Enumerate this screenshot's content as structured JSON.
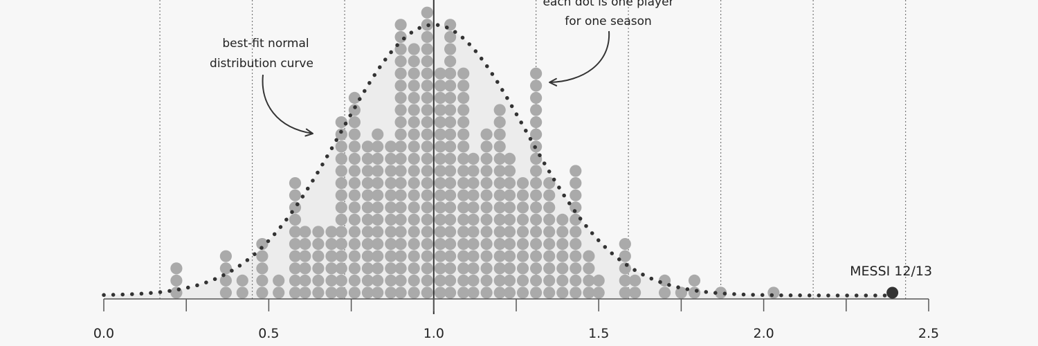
{
  "chart_data": {
    "type": "dotplot",
    "x_axis": {
      "range": [
        0.0,
        2.5
      ],
      "ticks": [
        0.0,
        0.5,
        1.0,
        1.5,
        2.0,
        2.5
      ],
      "tick_labels": [
        "0.0",
        "0.5",
        "1.0",
        "1.5",
        "2.0",
        "2.5"
      ],
      "minor_step": 0.25
    },
    "sd_gridlines": [
      0.17,
      0.45,
      0.73,
      1.31,
      1.59,
      1.87,
      2.15,
      2.43
    ],
    "mean_line": 1.0,
    "normal_curve": {
      "mean": 1.0,
      "sd": 0.28,
      "peak_dot_count": 22
    },
    "columns": [
      {
        "x": 0.22,
        "count": 3
      },
      {
        "x": 0.37,
        "count": 4
      },
      {
        "x": 0.42,
        "count": 2
      },
      {
        "x": 0.48,
        "count": 5
      },
      {
        "x": 0.53,
        "count": 2
      },
      {
        "x": 0.58,
        "count": 10
      },
      {
        "x": 0.61,
        "count": 6
      },
      {
        "x": 0.65,
        "count": 6
      },
      {
        "x": 0.69,
        "count": 6
      },
      {
        "x": 0.72,
        "count": 15
      },
      {
        "x": 0.76,
        "count": 17
      },
      {
        "x": 0.8,
        "count": 13
      },
      {
        "x": 0.83,
        "count": 14
      },
      {
        "x": 0.87,
        "count": 13
      },
      {
        "x": 0.9,
        "count": 23
      },
      {
        "x": 0.94,
        "count": 21
      },
      {
        "x": 0.98,
        "count": 24
      },
      {
        "x": 1.02,
        "count": 19
      },
      {
        "x": 1.05,
        "count": 23
      },
      {
        "x": 1.09,
        "count": 19
      },
      {
        "x": 1.12,
        "count": 12
      },
      {
        "x": 1.16,
        "count": 14
      },
      {
        "x": 1.2,
        "count": 16
      },
      {
        "x": 1.23,
        "count": 12
      },
      {
        "x": 1.27,
        "count": 10
      },
      {
        "x": 1.31,
        "count": 19
      },
      {
        "x": 1.35,
        "count": 10
      },
      {
        "x": 1.39,
        "count": 7
      },
      {
        "x": 1.43,
        "count": 11
      },
      {
        "x": 1.47,
        "count": 4
      },
      {
        "x": 1.5,
        "count": 2
      },
      {
        "x": 1.58,
        "count": 5
      },
      {
        "x": 1.61,
        "count": 2
      },
      {
        "x": 1.7,
        "count": 2
      },
      {
        "x": 1.75,
        "count": 1
      },
      {
        "x": 1.79,
        "count": 2
      },
      {
        "x": 1.87,
        "count": 1
      },
      {
        "x": 2.03,
        "count": 1
      }
    ],
    "highlight": {
      "label": "MESSI 12/13",
      "x": 2.39,
      "count": 1
    },
    "annotations": {
      "curve_note": [
        "best-fit normal",
        "distribution curve"
      ],
      "dot_note": [
        "each dot is one player",
        "for one season"
      ]
    },
    "colors": {
      "background": "#f7f7f7",
      "dot": "#aaaaaa",
      "highlight_dot": "#333333",
      "curve": "#333333",
      "curve_fill": "#ececec",
      "axis": "#555555",
      "grid": "#777777"
    }
  }
}
